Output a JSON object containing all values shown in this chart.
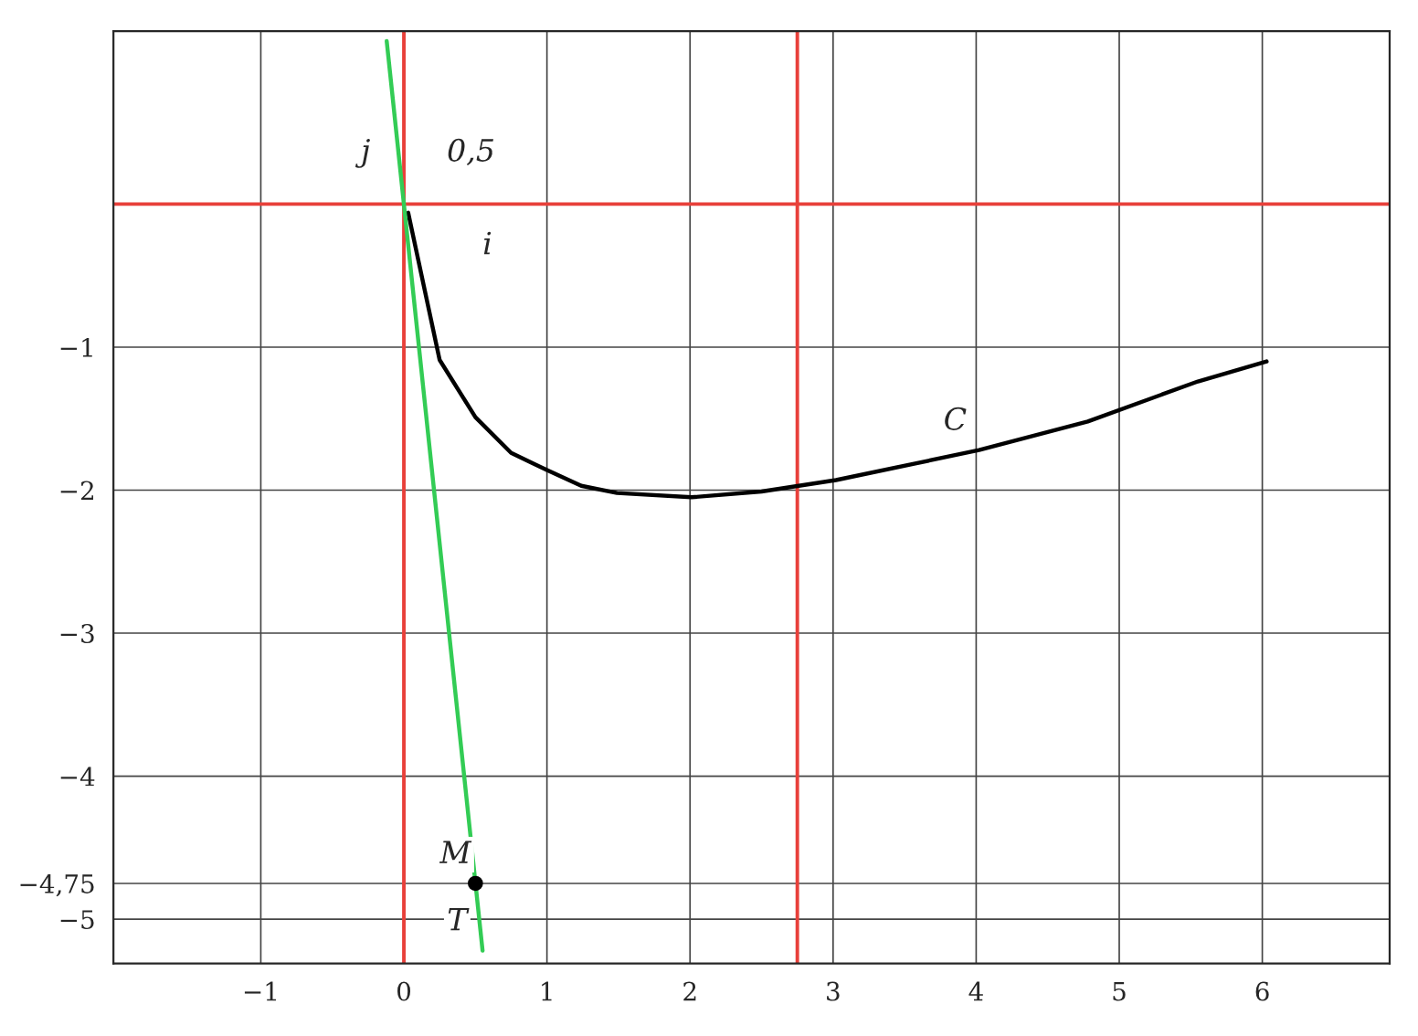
{
  "chart_data": {
    "type": "line",
    "series": [
      {
        "type": "line",
        "color": "#000000",
        "x": [
          0.03,
          0.25,
          0.5,
          0.75,
          1.0,
          1.24,
          1.49,
          2.01,
          2.5,
          3.02,
          4.02,
          4.78,
          5.55,
          6.03
        ],
        "values": [
          -0.06,
          -1.09,
          -1.49,
          -1.74,
          -1.86,
          -1.97,
          -2.02,
          -2.05,
          -2.01,
          -1.93,
          -1.72,
          -1.52,
          -1.24,
          -1.1
        ]
      },
      {
        "type": "line",
        "color": "#33cc55",
        "x": [
          -0.12,
          0.55
        ],
        "values": [
          1.14,
          -5.22
        ]
      },
      {
        "type": "scatter",
        "color": "#000000",
        "x": [
          0.5
        ],
        "values": [
          -4.75
        ]
      }
    ],
    "xlim": [
      -2.03,
      6.89
    ],
    "ylim": [
      -5.31,
      1.21
    ],
    "xticks": [
      {
        "value": -1,
        "label": "−1"
      },
      0,
      1,
      2,
      3,
      4,
      5,
      6
    ],
    "yticks": [
      {
        "value": -5,
        "label": "−5"
      },
      {
        "value": -4.75,
        "label": "−4,75"
      },
      {
        "value": -4,
        "label": "−4"
      },
      {
        "value": -3,
        "label": "−3"
      },
      {
        "value": -2,
        "label": "−2"
      },
      {
        "value": -1,
        "label": "−1"
      }
    ],
    "ref_lines": [
      {
        "axis": "x",
        "value": 0,
        "color": "#e8403a"
      },
      {
        "axis": "y",
        "value": 0,
        "color": "#e8403a"
      },
      {
        "axis": "x",
        "value": 2.75,
        "color": "#e8403a"
      }
    ],
    "grid": true,
    "annotations": [
      "0,5",
      "i",
      "j",
      {
        "text": "C",
        "x": 4.02,
        "y": -1.72
      },
      {
        "text": "M",
        "x": 0.5,
        "y": -4.75
      },
      {
        "text": "T",
        "x": 0.55,
        "y": -5.22
      }
    ]
  }
}
